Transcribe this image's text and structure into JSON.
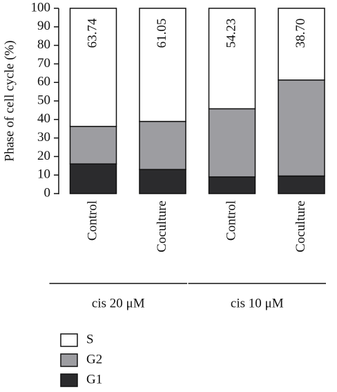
{
  "chart_data": {
    "type": "stacked_bar",
    "y_label": "Phase of cell cycle (%)",
    "categories": [
      "Control",
      "Coculture",
      "Control",
      "Coculture"
    ],
    "groups": [
      {
        "label": "cis 20 μM",
        "span": [
          0,
          1
        ]
      },
      {
        "label": "cis 10 μM",
        "span": [
          2,
          3
        ]
      }
    ],
    "series": [
      {
        "name": "S",
        "color": "#ffffff",
        "values": [
          63.74,
          61.05,
          54.23,
          38.7
        ],
        "value_labels": [
          "63.74",
          "61.05",
          "54.23",
          "38.70"
        ]
      },
      {
        "name": "G2",
        "color": "#9d9da1",
        "values": [
          20.26,
          25.95,
          36.77,
          51.8
        ]
      },
      {
        "name": "G1",
        "color": "#2b2b2d",
        "values": [
          16,
          13,
          9,
          9.5
        ]
      }
    ],
    "ylim": [
      0,
      100
    ],
    "yticks": [
      0,
      10,
      20,
      30,
      40,
      50,
      60,
      70,
      80,
      90,
      100
    ]
  }
}
